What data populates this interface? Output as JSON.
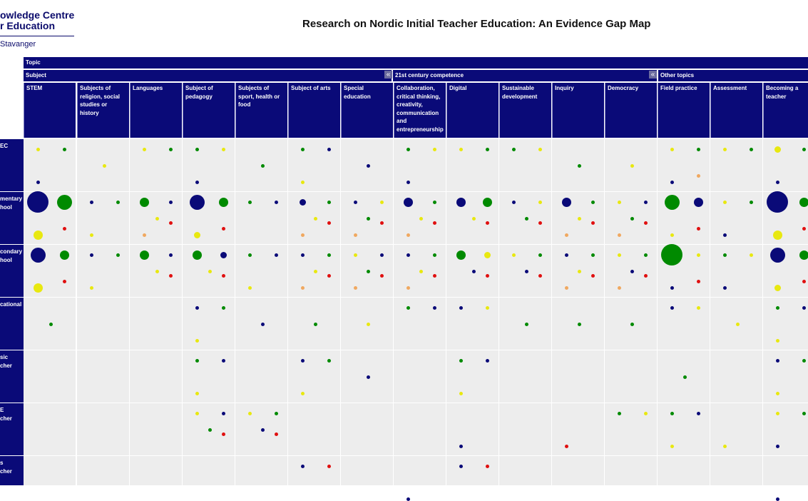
{
  "logo": {
    "line1": "owledge Centre",
    "line2": "r Education",
    "city": "Stavanger"
  },
  "title": "Research on Nordic Initial Teacher Education: An Evidence Gap Map",
  "header": {
    "topic_label": "Topic",
    "groups": [
      {
        "label": "Subject",
        "collapse_icon": "«"
      },
      {
        "label": "21st century competence",
        "collapse_icon": "«"
      },
      {
        "label": "Other topics"
      }
    ],
    "categories": [
      "STEM",
      "Subjects of religion, social studies or history",
      "Languages",
      "Subject of pedagogy",
      "Subjects of sport, health or food",
      "Subject of arts",
      "Special education",
      "Collaboration, critical thinking, creativity, communication and entrepreneurship",
      "Digital",
      "Sustainable development",
      "Inquiry",
      "Democracy",
      "Field practice",
      "Assessment",
      "Becoming a teacher"
    ]
  },
  "rows": [
    "EC",
    "mentary\nhool",
    "condary\nhool",
    "cational",
    "sic\ncher",
    "E\ncher",
    "s\ncher"
  ],
  "colors": {
    "blue": "#0a0a78",
    "green": "#008a00",
    "yellow": "#e8e810",
    "red": "#e01010",
    "orange": "#f0a860"
  },
  "grid": [
    [
      [
        [
          "yellow",
          1
        ],
        [
          "green",
          1
        ],
        null,
        null,
        [
          "blue",
          1
        ],
        null
      ],
      [
        null,
        null,
        [
          "yellow",
          1
        ],
        null,
        null,
        null
      ],
      [
        [
          "yellow",
          1
        ],
        [
          "green",
          1
        ],
        null,
        null,
        null,
        null
      ],
      [
        [
          "green",
          1
        ],
        [
          "yellow",
          1
        ],
        null,
        null,
        [
          "blue",
          1
        ],
        null
      ],
      [
        null,
        null,
        [
          "green",
          1
        ],
        null,
        null,
        null
      ],
      [
        [
          "green",
          1
        ],
        [
          "blue",
          1
        ],
        null,
        null,
        [
          "yellow",
          1
        ],
        null
      ],
      [
        null,
        null,
        [
          "blue",
          1
        ],
        null,
        null,
        null
      ],
      [
        [
          "green",
          1
        ],
        [
          "yellow",
          1
        ],
        null,
        null,
        [
          "blue",
          1
        ],
        null
      ],
      [
        [
          "yellow",
          1
        ],
        [
          "green",
          1
        ],
        null,
        null,
        null,
        null
      ],
      [
        [
          "green",
          1
        ],
        [
          "yellow",
          1
        ],
        null,
        null,
        null,
        null
      ],
      [
        null,
        null,
        [
          "green",
          1
        ],
        null,
        null,
        null
      ],
      [
        null,
        null,
        [
          "yellow",
          1
        ],
        null,
        null,
        null
      ],
      [
        [
          "yellow",
          1
        ],
        [
          "green",
          1
        ],
        null,
        null,
        [
          "blue",
          1
        ],
        [
          "orange",
          1
        ]
      ],
      [
        [
          "yellow",
          1
        ],
        [
          "green",
          1
        ],
        null,
        null,
        null,
        null
      ],
      [
        [
          "yellow",
          2
        ],
        [
          "green",
          1
        ],
        null,
        null,
        [
          "blue",
          1
        ],
        null
      ]
    ],
    [
      [
        [
          "blue",
          5
        ],
        [
          "green",
          4
        ],
        null,
        null,
        [
          "yellow",
          3
        ],
        [
          "red",
          1
        ]
      ],
      [
        [
          "blue",
          1
        ],
        [
          "green",
          1
        ],
        null,
        null,
        [
          "yellow",
          1
        ],
        null
      ],
      [
        [
          "green",
          3
        ],
        [
          "blue",
          1
        ],
        [
          "yellow",
          1
        ],
        [
          "red",
          1
        ],
        [
          "orange",
          1
        ],
        null
      ],
      [
        [
          "blue",
          4
        ],
        [
          "green",
          3
        ],
        null,
        null,
        [
          "yellow",
          2
        ],
        [
          "red",
          1
        ]
      ],
      [
        [
          "green",
          1
        ],
        [
          "blue",
          1
        ],
        null,
        null,
        null,
        null
      ],
      [
        [
          "blue",
          2
        ],
        [
          "green",
          1
        ],
        [
          "yellow",
          1
        ],
        [
          "red",
          1
        ],
        [
          "orange",
          1
        ],
        null
      ],
      [
        [
          "blue",
          1
        ],
        [
          "yellow",
          1
        ],
        [
          "green",
          1
        ],
        [
          "red",
          1
        ],
        [
          "orange",
          1
        ],
        null
      ],
      [
        [
          "blue",
          3
        ],
        [
          "green",
          1
        ],
        [
          "yellow",
          1
        ],
        [
          "red",
          1
        ],
        [
          "orange",
          1
        ],
        null
      ],
      [
        [
          "blue",
          3
        ],
        [
          "green",
          3
        ],
        [
          "yellow",
          1
        ],
        [
          "red",
          1
        ],
        null,
        null
      ],
      [
        [
          "blue",
          1
        ],
        [
          "yellow",
          1
        ],
        [
          "green",
          1
        ],
        [
          "red",
          1
        ],
        null,
        null
      ],
      [
        [
          "blue",
          3
        ],
        [
          "green",
          1
        ],
        [
          "yellow",
          1
        ],
        [
          "red",
          1
        ],
        [
          "orange",
          1
        ],
        null
      ],
      [
        [
          "yellow",
          1
        ],
        [
          "blue",
          1
        ],
        [
          "green",
          1
        ],
        [
          "red",
          1
        ],
        [
          "orange",
          1
        ],
        null
      ],
      [
        [
          "green",
          4
        ],
        [
          "blue",
          3
        ],
        null,
        null,
        [
          "yellow",
          1
        ],
        [
          "red",
          1
        ]
      ],
      [
        [
          "yellow",
          1
        ],
        [
          "green",
          1
        ],
        null,
        null,
        [
          "blue",
          1
        ],
        null
      ],
      [
        [
          "blue",
          5
        ],
        [
          "green",
          3
        ],
        null,
        null,
        [
          "yellow",
          3
        ],
        [
          "red",
          1
        ]
      ]
    ],
    [
      [
        [
          "blue",
          4
        ],
        [
          "green",
          3
        ],
        null,
        null,
        [
          "yellow",
          3
        ],
        [
          "red",
          1
        ]
      ],
      [
        [
          "blue",
          1
        ],
        [
          "green",
          1
        ],
        null,
        null,
        [
          "yellow",
          1
        ],
        null
      ],
      [
        [
          "green",
          3
        ],
        [
          "blue",
          1
        ],
        [
          "yellow",
          1
        ],
        [
          "red",
          1
        ],
        null,
        null
      ],
      [
        [
          "green",
          3
        ],
        [
          "blue",
          2
        ],
        [
          "yellow",
          1
        ],
        [
          "red",
          1
        ],
        null,
        null
      ],
      [
        [
          "green",
          1
        ],
        [
          "blue",
          1
        ],
        null,
        null,
        [
          "yellow",
          1
        ],
        null
      ],
      [
        [
          "blue",
          1
        ],
        [
          "green",
          1
        ],
        [
          "yellow",
          1
        ],
        [
          "red",
          1
        ],
        [
          "orange",
          1
        ],
        null
      ],
      [
        [
          "yellow",
          1
        ],
        [
          "blue",
          1
        ],
        [
          "green",
          1
        ],
        [
          "red",
          1
        ],
        [
          "orange",
          1
        ],
        null
      ],
      [
        [
          "blue",
          1
        ],
        [
          "green",
          1
        ],
        [
          "yellow",
          1
        ],
        [
          "red",
          1
        ],
        [
          "orange",
          1
        ],
        null
      ],
      [
        [
          "green",
          3
        ],
        [
          "yellow",
          2
        ],
        [
          "blue",
          1
        ],
        [
          "red",
          1
        ],
        null,
        null
      ],
      [
        [
          "yellow",
          1
        ],
        [
          "green",
          1
        ],
        [
          "blue",
          1
        ],
        [
          "red",
          1
        ],
        null,
        null
      ],
      [
        [
          "blue",
          1
        ],
        [
          "green",
          1
        ],
        [
          "yellow",
          1
        ],
        [
          "red",
          1
        ],
        [
          "orange",
          1
        ],
        null
      ],
      [
        [
          "yellow",
          1
        ],
        [
          "green",
          1
        ],
        [
          "blue",
          1
        ],
        [
          "red",
          1
        ],
        [
          "orange",
          1
        ],
        null
      ],
      [
        [
          "green",
          5
        ],
        [
          "yellow",
          1
        ],
        null,
        null,
        [
          "blue",
          1
        ],
        [
          "red",
          1
        ]
      ],
      [
        [
          "green",
          1
        ],
        [
          "yellow",
          1
        ],
        null,
        null,
        [
          "blue",
          1
        ],
        null
      ],
      [
        [
          "blue",
          4
        ],
        [
          "green",
          3
        ],
        null,
        null,
        [
          "yellow",
          2
        ],
        [
          "red",
          1
        ]
      ]
    ],
    [
      [
        null,
        null,
        [
          "green",
          1
        ],
        null,
        null,
        null
      ],
      [
        null,
        null,
        null,
        null,
        null,
        null
      ],
      [
        null,
        null,
        null,
        null,
        null,
        null
      ],
      [
        [
          "blue",
          1
        ],
        [
          "green",
          1
        ],
        null,
        null,
        [
          "yellow",
          1
        ],
        null
      ],
      [
        null,
        null,
        [
          "blue",
          1
        ],
        null,
        null,
        null
      ],
      [
        null,
        null,
        [
          "green",
          1
        ],
        null,
        null,
        null
      ],
      [
        null,
        null,
        [
          "yellow",
          1
        ],
        null,
        null,
        null
      ],
      [
        [
          "green",
          1
        ],
        [
          "blue",
          1
        ],
        null,
        null,
        null,
        null
      ],
      [
        [
          "blue",
          1
        ],
        [
          "yellow",
          1
        ],
        null,
        null,
        null,
        null
      ],
      [
        null,
        null,
        [
          "green",
          1
        ],
        null,
        null,
        null
      ],
      [
        null,
        null,
        [
          "green",
          1
        ],
        null,
        null,
        null
      ],
      [
        null,
        null,
        [
          "green",
          1
        ],
        null,
        null,
        null
      ],
      [
        [
          "blue",
          1
        ],
        [
          "yellow",
          1
        ],
        null,
        null,
        null,
        null
      ],
      [
        null,
        null,
        [
          "yellow",
          1
        ],
        null,
        null,
        null
      ],
      [
        [
          "green",
          1
        ],
        [
          "blue",
          1
        ],
        null,
        null,
        [
          "yellow",
          1
        ],
        null
      ]
    ],
    [
      [
        null,
        null,
        null,
        null,
        null,
        null
      ],
      [
        null,
        null,
        null,
        null,
        null,
        null
      ],
      [
        null,
        null,
        null,
        null,
        null,
        null
      ],
      [
        [
          "green",
          1
        ],
        [
          "blue",
          1
        ],
        null,
        null,
        [
          "yellow",
          1
        ],
        null
      ],
      [
        null,
        null,
        null,
        null,
        null,
        null
      ],
      [
        [
          "blue",
          1
        ],
        [
          "green",
          1
        ],
        null,
        null,
        [
          "yellow",
          1
        ],
        null
      ],
      [
        null,
        null,
        [
          "blue",
          1
        ],
        null,
        null,
        null
      ],
      [
        null,
        null,
        null,
        null,
        null,
        null
      ],
      [
        [
          "green",
          1
        ],
        [
          "blue",
          1
        ],
        null,
        null,
        [
          "yellow",
          1
        ],
        null
      ],
      [
        null,
        null,
        null,
        null,
        null,
        null
      ],
      [
        null,
        null,
        null,
        null,
        null,
        null
      ],
      [
        null,
        null,
        null,
        null,
        null,
        null
      ],
      [
        null,
        null,
        [
          "green",
          1
        ],
        null,
        null,
        null
      ],
      [
        null,
        null,
        null,
        null,
        null,
        null
      ],
      [
        [
          "blue",
          1
        ],
        [
          "green",
          1
        ],
        null,
        null,
        [
          "yellow",
          1
        ],
        null
      ]
    ],
    [
      [
        null,
        null,
        null,
        null,
        null,
        null
      ],
      [
        null,
        null,
        null,
        null,
        null,
        null
      ],
      [
        null,
        null,
        null,
        null,
        null,
        null
      ],
      [
        [
          "yellow",
          1
        ],
        [
          "blue",
          1
        ],
        [
          "green",
          1
        ],
        [
          "red",
          1
        ],
        null,
        null
      ],
      [
        [
          "yellow",
          1
        ],
        [
          "green",
          1
        ],
        [
          "blue",
          1
        ],
        [
          "red",
          1
        ],
        null,
        null
      ],
      [
        null,
        null,
        null,
        null,
        null,
        null
      ],
      [
        null,
        null,
        null,
        null,
        null,
        null
      ],
      [
        null,
        null,
        null,
        null,
        null,
        null
      ],
      [
        null,
        null,
        null,
        null,
        [
          "blue",
          1
        ],
        null
      ],
      [
        null,
        null,
        null,
        null,
        null,
        null
      ],
      [
        null,
        null,
        null,
        null,
        [
          "red",
          1
        ],
        null
      ],
      [
        [
          "green",
          1
        ],
        [
          "yellow",
          1
        ],
        null,
        null,
        null,
        null
      ],
      [
        [
          "green",
          1
        ],
        [
          "blue",
          1
        ],
        null,
        null,
        [
          "yellow",
          1
        ],
        null
      ],
      [
        null,
        null,
        null,
        null,
        [
          "yellow",
          1
        ],
        null
      ],
      [
        [
          "yellow",
          1
        ],
        [
          "green",
          1
        ],
        null,
        null,
        [
          "blue",
          1
        ],
        null
      ]
    ],
    [
      [
        null,
        null,
        null,
        null,
        null,
        null
      ],
      [
        null,
        null,
        null,
        null,
        null,
        null
      ],
      [
        null,
        null,
        null,
        null,
        null,
        null
      ],
      [
        null,
        null,
        null,
        null,
        null,
        null
      ],
      [
        null,
        null,
        null,
        null,
        null,
        null
      ],
      [
        [
          "blue",
          1
        ],
        [
          "red",
          1
        ],
        null,
        null,
        null,
        null
      ],
      [
        null,
        null,
        null,
        null,
        null,
        null
      ],
      [
        null,
        null,
        null,
        null,
        [
          "blue",
          1
        ],
        null
      ],
      [
        [
          "blue",
          1
        ],
        [
          "red",
          1
        ],
        null,
        null,
        null,
        null
      ],
      [
        null,
        null,
        null,
        null,
        null,
        null
      ],
      [
        null,
        null,
        null,
        null,
        null,
        null
      ],
      [
        null,
        null,
        null,
        null,
        null,
        null
      ],
      [
        null,
        null,
        null,
        null,
        null,
        null
      ],
      [
        null,
        null,
        null,
        null,
        null,
        null
      ],
      [
        null,
        null,
        null,
        null,
        [
          "blue",
          1
        ],
        null
      ]
    ]
  ]
}
